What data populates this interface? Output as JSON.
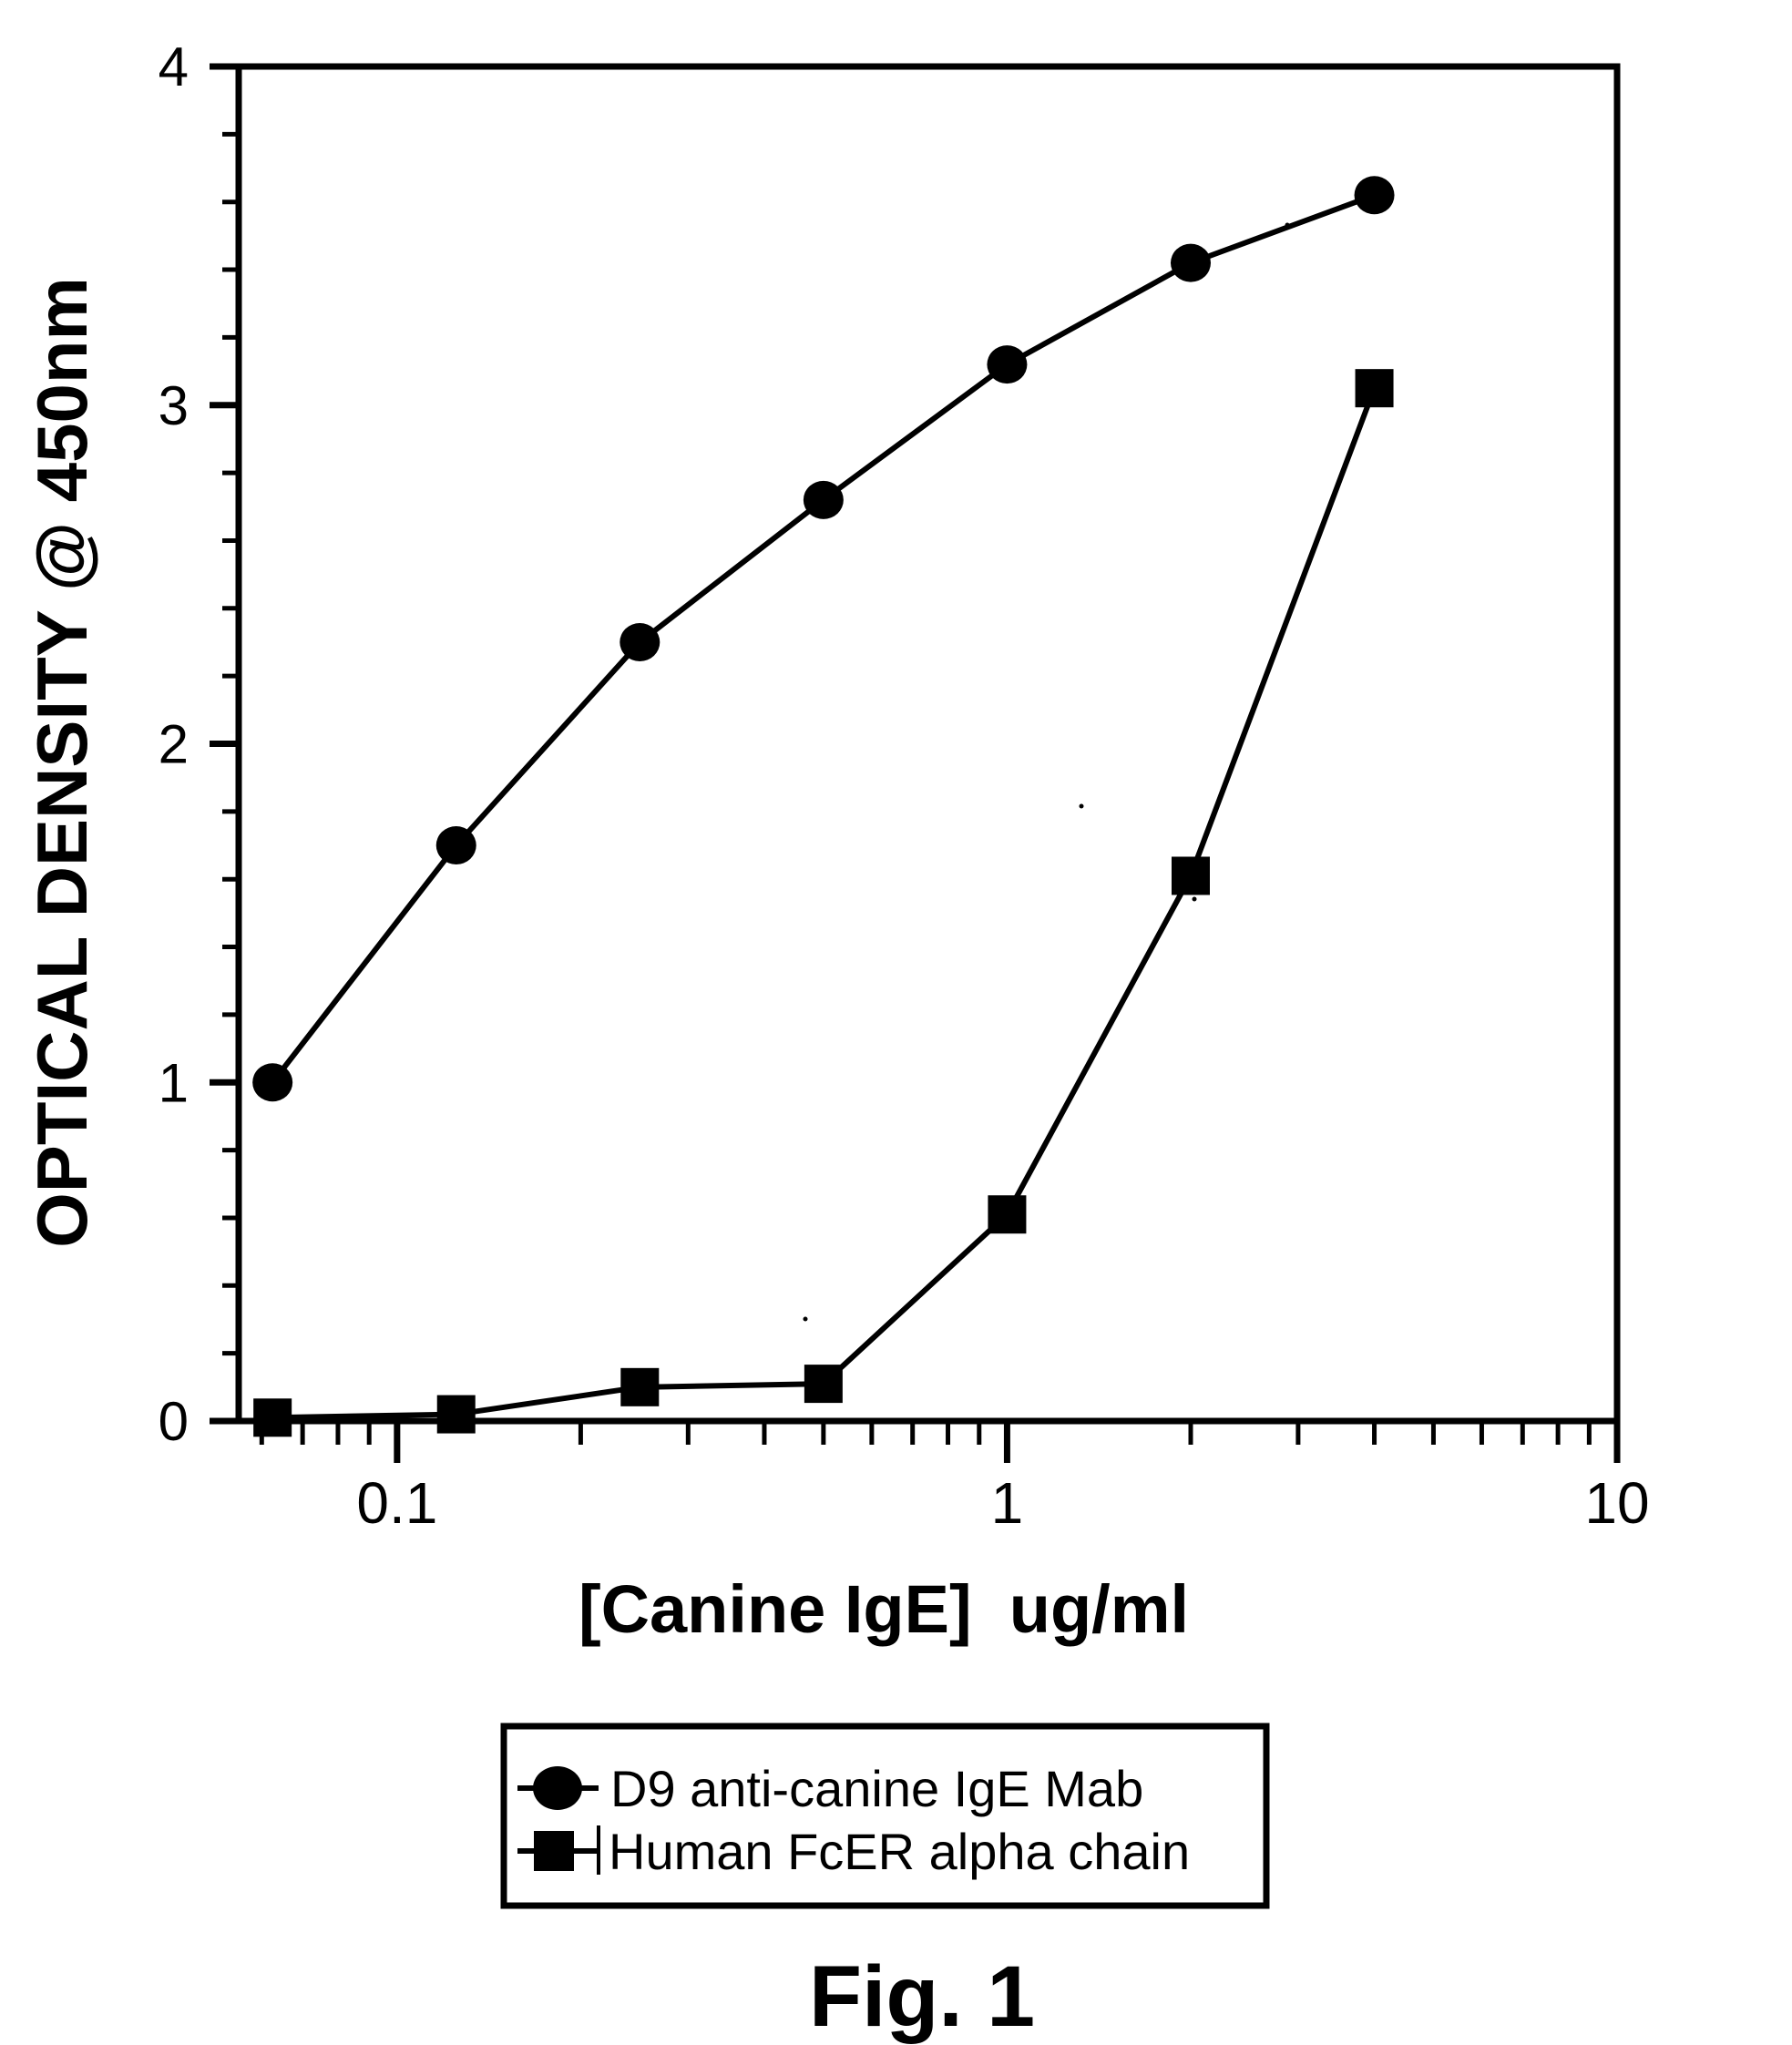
{
  "figure": {
    "caption": "Fig. 1"
  },
  "chart_data": {
    "type": "line",
    "title": "",
    "xlabel": "[Canine IgE]  ug/ml",
    "ylabel": "OPTICAL DENSITY @ 450nm",
    "x_scale": "log",
    "x_range": [
      0.055,
      10
    ],
    "y_range": [
      0,
      4
    ],
    "x_major_ticks": [
      0.1,
      1,
      10
    ],
    "x_major_tick_labels": [
      "0.1",
      "1",
      "10"
    ],
    "x_minor_ticks": [
      0.06,
      0.07,
      0.08,
      0.09,
      0.2,
      0.3,
      0.4,
      0.5,
      0.6,
      0.7,
      0.8,
      0.9,
      2,
      3,
      4,
      5,
      6,
      7,
      8,
      9
    ],
    "y_major_ticks": [
      0,
      1,
      2,
      3,
      4
    ],
    "y_major_tick_labels": [
      "0",
      "1",
      "2",
      "3",
      "4"
    ],
    "y_minor_tick_step": 0.2,
    "grid": false,
    "legend_position": "below-axis",
    "series": [
      {
        "name": "D9 anti-canine IgE Mab",
        "marker": "circle",
        "x": [
          0.0625,
          0.125,
          0.25,
          0.5,
          1,
          2,
          4
        ],
        "y": [
          1.0,
          1.7,
          2.3,
          2.72,
          3.12,
          3.42,
          3.62
        ]
      },
      {
        "name": "Human FcER alpha chain",
        "marker": "square",
        "x": [
          0.0625,
          0.125,
          0.25,
          0.5,
          1,
          2,
          4
        ],
        "y": [
          0.01,
          0.02,
          0.1,
          0.11,
          0.61,
          1.61,
          3.05
        ]
      }
    ],
    "colors": {
      "foreground": "#000000",
      "background": "#ffffff"
    }
  }
}
